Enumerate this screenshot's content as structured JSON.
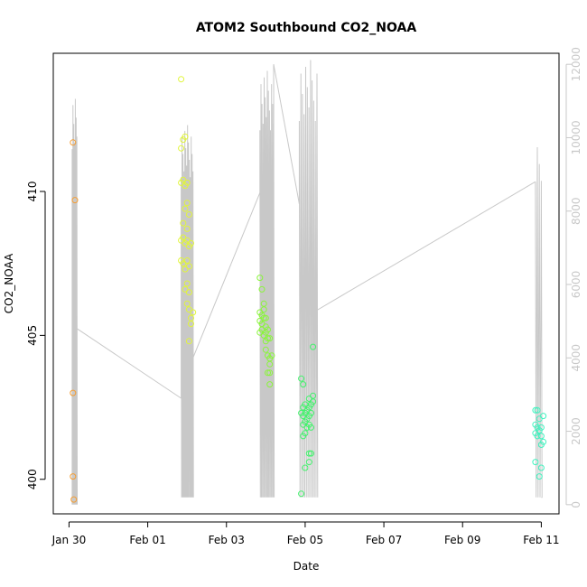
{
  "chart_data": {
    "type": "scatter",
    "title": "ATOM2 Southbound CO2_NOAA",
    "xlabel": "Date",
    "ylabel": "CO2_NOAA",
    "x_ticks": [
      "Jan 30",
      "Feb 01",
      "Feb 03",
      "Feb 05",
      "Feb 07",
      "Feb 09",
      "Feb 11"
    ],
    "x_tick_days": [
      0,
      2,
      4,
      6,
      8,
      10,
      12
    ],
    "xlim_days": [
      -0.4,
      12.45
    ],
    "ylim": [
      398.8,
      414.8
    ],
    "y_ticks": [
      400,
      405,
      410
    ],
    "y2lim": [
      -250,
      12300
    ],
    "y2_ticks": [
      0,
      2000,
      4000,
      6000,
      8000,
      10000,
      12000
    ],
    "colors": {
      "axis": "#000000",
      "secondary": "#c8c8c8"
    },
    "series": [
      {
        "color": "#f59d32",
        "points": [
          [
            0.1,
            411.7
          ],
          [
            0.15,
            409.7
          ],
          [
            0.1,
            403.0
          ],
          [
            0.1,
            400.1
          ],
          [
            0.12,
            399.3
          ]
        ]
      },
      {
        "color": "#e1f53b",
        "points": [
          [
            2.85,
            413.9
          ],
          [
            2.85,
            411.5
          ],
          [
            2.9,
            411.8
          ],
          [
            2.95,
            411.9
          ],
          [
            2.85,
            410.3
          ],
          [
            2.9,
            410.4
          ],
          [
            2.95,
            410.2
          ],
          [
            3.0,
            410.3
          ],
          [
            2.95,
            409.4
          ],
          [
            3.0,
            409.6
          ],
          [
            3.05,
            409.2
          ],
          [
            2.9,
            408.9
          ],
          [
            3.0,
            408.7
          ],
          [
            2.85,
            408.3
          ],
          [
            2.9,
            408.4
          ],
          [
            2.95,
            408.2
          ],
          [
            3.0,
            408.3
          ],
          [
            3.05,
            408.1
          ],
          [
            3.1,
            408.2
          ],
          [
            2.85,
            407.6
          ],
          [
            2.9,
            407.5
          ],
          [
            3.0,
            407.6
          ],
          [
            3.05,
            407.4
          ],
          [
            2.95,
            407.3
          ],
          [
            2.95,
            406.6
          ],
          [
            3.0,
            406.8
          ],
          [
            3.05,
            406.5
          ],
          [
            3.0,
            406.1
          ],
          [
            3.05,
            405.9
          ],
          [
            3.1,
            405.6
          ],
          [
            3.15,
            405.8
          ],
          [
            3.1,
            405.4
          ],
          [
            3.05,
            404.8
          ]
        ]
      },
      {
        "color": "#8af53b",
        "points": [
          [
            4.85,
            407.0
          ],
          [
            4.9,
            406.6
          ],
          [
            4.95,
            406.1
          ],
          [
            4.85,
            405.8
          ],
          [
            4.9,
            405.7
          ],
          [
            4.95,
            405.9
          ],
          [
            5.0,
            405.6
          ],
          [
            4.85,
            405.5
          ],
          [
            4.9,
            405.4
          ],
          [
            4.95,
            405.6
          ],
          [
            5.0,
            405.3
          ],
          [
            4.9,
            405.2
          ],
          [
            5.0,
            405.1
          ],
          [
            4.85,
            405.1
          ],
          [
            5.05,
            405.2
          ],
          [
            4.95,
            405.0
          ],
          [
            5.05,
            404.9
          ],
          [
            5.0,
            404.8
          ],
          [
            5.1,
            404.9
          ],
          [
            5.0,
            404.5
          ],
          [
            5.05,
            404.3
          ],
          [
            5.1,
            404.2
          ],
          [
            5.15,
            404.3
          ],
          [
            5.1,
            404.0
          ],
          [
            5.05,
            403.7
          ],
          [
            5.1,
            403.7
          ],
          [
            5.1,
            403.3
          ]
        ]
      },
      {
        "color": "#42f36c",
        "points": [
          [
            5.9,
            403.5
          ],
          [
            5.95,
            403.3
          ],
          [
            6.2,
            404.6
          ],
          [
            5.95,
            402.5
          ],
          [
            6.0,
            402.6
          ],
          [
            6.05,
            402.4
          ],
          [
            6.1,
            402.5
          ],
          [
            6.15,
            402.6
          ],
          [
            5.9,
            402.3
          ],
          [
            5.95,
            402.2
          ],
          [
            6.0,
            402.3
          ],
          [
            6.05,
            402.1
          ],
          [
            6.1,
            402.2
          ],
          [
            6.15,
            402.3
          ],
          [
            5.95,
            401.9
          ],
          [
            6.0,
            402.0
          ],
          [
            6.05,
            401.8
          ],
          [
            6.1,
            401.9
          ],
          [
            6.15,
            401.8
          ],
          [
            5.95,
            401.5
          ],
          [
            6.0,
            401.6
          ],
          [
            6.2,
            402.9
          ],
          [
            6.2,
            402.7
          ],
          [
            6.1,
            402.8
          ],
          [
            6.1,
            400.9
          ],
          [
            6.15,
            400.9
          ],
          [
            6.1,
            400.6
          ],
          [
            6.0,
            400.4
          ],
          [
            5.9,
            399.5
          ]
        ]
      },
      {
        "color": "#40f3bf",
        "points": [
          [
            11.85,
            402.4
          ],
          [
            11.9,
            402.4
          ],
          [
            12.05,
            402.2
          ],
          [
            11.95,
            402.1
          ],
          [
            11.85,
            401.9
          ],
          [
            11.9,
            401.8
          ],
          [
            12.0,
            401.8
          ],
          [
            11.95,
            401.7
          ],
          [
            11.85,
            401.6
          ],
          [
            11.9,
            401.5
          ],
          [
            12.0,
            401.5
          ],
          [
            12.05,
            401.3
          ],
          [
            12.0,
            401.2
          ],
          [
            11.85,
            400.6
          ],
          [
            12.0,
            400.4
          ],
          [
            11.95,
            400.1
          ]
        ]
      }
    ],
    "altitude_line": {
      "color": "#c8c8c8",
      "segments": [
        {
          "from": 0.08,
          "to": 0.2,
          "lo": 0,
          "hi": 11400,
          "n": 7,
          "edge_left": 0,
          "edge_right": 4800
        },
        {
          "from": 2.85,
          "to": 3.15,
          "lo": 200,
          "hi": 10500,
          "n": 14,
          "edge_left": 2900,
          "edge_right": 4000
        },
        {
          "from": 4.85,
          "to": 5.2,
          "lo": 200,
          "hi": 12000,
          "n": 14,
          "edge_left": 8500,
          "edge_right": 12000
        },
        {
          "from": 5.85,
          "to": 6.3,
          "lo": 200,
          "hi": 12300,
          "n": 12,
          "edge_left": 8200,
          "edge_right": 5300
        },
        {
          "from": 11.85,
          "to": 12.0,
          "lo": 200,
          "hi": 10200,
          "n": 4,
          "edge_left": 8800,
          "edge_right": 200
        }
      ],
      "transits": [
        [
          [
            0.2,
            4800
          ],
          [
            2.85,
            2900
          ]
        ],
        [
          [
            3.15,
            4000
          ],
          [
            4.85,
            8500
          ]
        ],
        [
          [
            5.2,
            12000
          ],
          [
            5.85,
            8200
          ]
        ],
        [
          [
            6.3,
            5300
          ],
          [
            11.85,
            8800
          ]
        ]
      ]
    }
  }
}
